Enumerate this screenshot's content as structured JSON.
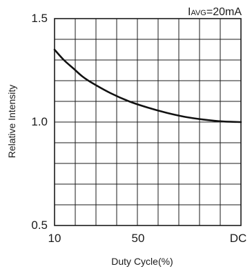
{
  "chart_data": {
    "type": "line",
    "annotation": {
      "prefix": "I",
      "subscript": "AVG",
      "suffix": "=20mA"
    },
    "xlabel": "Duty Cycle(%)",
    "ylabel": "Relative Intensity",
    "x_tick_labels": [
      "10",
      "50",
      "DC"
    ],
    "y_tick_labels": [
      "1.5",
      "1.0",
      "0.5"
    ],
    "ylim": [
      0.5,
      1.5
    ],
    "grid": true,
    "grid_columns": 9,
    "grid_rows": 10,
    "series": [
      {
        "color": "#111111",
        "points": [
          [
            0.0,
            1.35
          ],
          [
            0.05,
            1.3
          ],
          [
            0.1,
            1.26
          ],
          [
            0.15,
            1.22
          ],
          [
            0.2,
            1.19
          ],
          [
            0.3,
            1.14
          ],
          [
            0.4,
            1.1
          ],
          [
            0.5,
            1.07
          ],
          [
            0.6,
            1.045
          ],
          [
            0.7,
            1.025
          ],
          [
            0.8,
            1.012
          ],
          [
            0.9,
            1.003
          ],
          [
            1.0,
            1.0
          ]
        ]
      }
    ]
  }
}
